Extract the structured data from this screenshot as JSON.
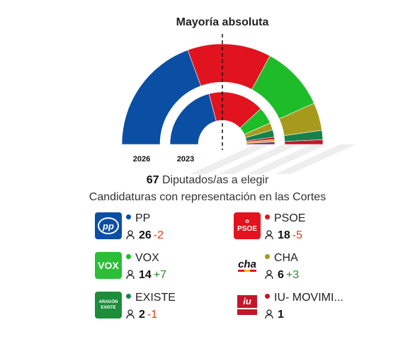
{
  "title": "Mayoría absoluta",
  "subtitle_count": "67",
  "subtitle_text": " Diputados/as a elegir",
  "subtitle_2": "Candidaturas con representación en las Cortes",
  "labels": {
    "outer": "2026",
    "inner": "2023"
  },
  "chart_data": {
    "type": "pie",
    "total_seats": 67,
    "majority": 34,
    "series": [
      {
        "name": "2026",
        "values": [
          26,
          18,
          14,
          6,
          2,
          1
        ]
      },
      {
        "name": "2023",
        "values": [
          28,
          23,
          7,
          3,
          3,
          1,
          1,
          1
        ]
      }
    ],
    "categories_2026": [
      "PP",
      "PSOE",
      "VOX",
      "CHA",
      "EXISTE",
      "IU- MOVIMI..."
    ],
    "colors_2026": [
      "#0a4fa3",
      "#e0131f",
      "#1fbc2a",
      "#a69a1c",
      "#16814a",
      "#c3162b"
    ],
    "colors_2023": [
      "#0a4fa3",
      "#e0131f",
      "#1fbc2a",
      "#a69a1c",
      "#16814a",
      "#c3162b",
      "#f29b1c",
      "#6b2d86"
    ]
  },
  "parties": [
    {
      "name": "PP",
      "color": "#0a4fa3",
      "seats": "26",
      "diff": "-2",
      "logo_text": "pp",
      "logo_bg": "#0a4fa3"
    },
    {
      "name": "PSOE",
      "color": "#e0131f",
      "seats": "18",
      "diff": "-5",
      "logo_text": "PSOE",
      "logo_bg": "#e0131f"
    },
    {
      "name": "VOX",
      "color": "#1fbc2a",
      "seats": "14",
      "diff": "+7",
      "logo_text": "VOX",
      "logo_bg": "#2cbe37"
    },
    {
      "name": "CHA",
      "color": "#a69a1c",
      "seats": "6",
      "diff": "+3",
      "logo_text": "cha",
      "logo_bg": "#ffffff"
    },
    {
      "name": "EXISTE",
      "color": "#16814a",
      "seats": "2",
      "diff": "-1",
      "logo_text": "ARAGÓN EXISTE",
      "logo_bg": "#1c8d3a"
    },
    {
      "name": "IU- MOVIMI...",
      "color": "#c3162b",
      "seats": "1",
      "diff": "",
      "logo_text": "iu",
      "logo_bg": "#ffffff"
    }
  ]
}
